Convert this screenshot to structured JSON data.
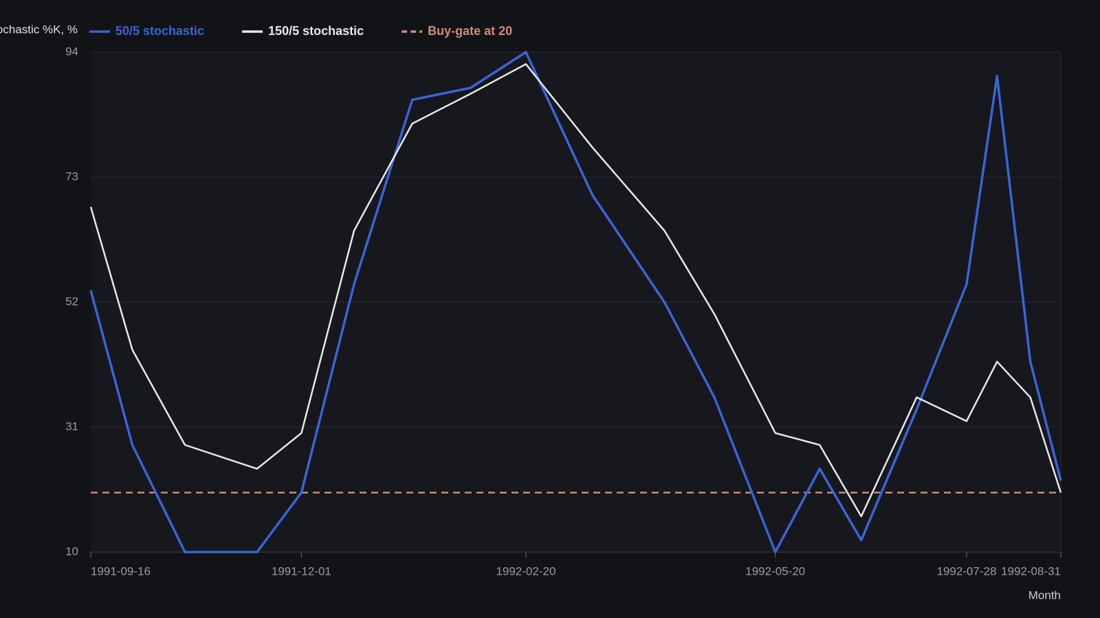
{
  "chart_data": {
    "type": "line",
    "ylabel": "Stochastic %K, %",
    "xlabel": "Month",
    "x": [
      "1991-09-16",
      "1991-10-01",
      "1991-10-20",
      "1991-11-15",
      "1991-12-01",
      "1991-12-20",
      "1992-01-10",
      "1992-01-31",
      "1992-02-20",
      "1992-03-15",
      "1992-04-10",
      "1992-04-28",
      "1992-05-20",
      "1992-06-05",
      "1992-06-20",
      "1992-07-10",
      "1992-07-28",
      "1992-08-08",
      "1992-08-20",
      "1992-08-31"
    ],
    "series": [
      {
        "name": "50/5 stochastic",
        "color": "#3a64d8",
        "values": [
          54,
          28,
          10,
          10,
          20,
          55,
          86,
          88,
          94,
          70,
          52,
          36,
          10,
          24,
          12,
          34,
          55,
          90,
          42,
          22
        ]
      },
      {
        "name": "150/5 stochastic",
        "color": "#e8e8e8",
        "values": [
          68,
          44,
          28,
          24,
          30,
          64,
          82,
          87,
          92,
          78,
          64,
          50,
          30,
          28,
          16,
          36,
          32,
          42,
          36,
          20
        ]
      }
    ],
    "reference_line": {
      "name": "Buy-gate at 20",
      "value": 20,
      "color": "#d08a78"
    },
    "xlim": [
      "1991-09-16",
      "1992-08-31"
    ],
    "xticks": [
      "1991-09-16",
      "1991-12-01",
      "1992-02-20",
      "1992-05-20",
      "1992-07-28",
      "1992-08-31"
    ],
    "ylim": [
      10,
      94
    ],
    "yticks": [
      10,
      31,
      52,
      73,
      94
    ],
    "grid": true
  }
}
